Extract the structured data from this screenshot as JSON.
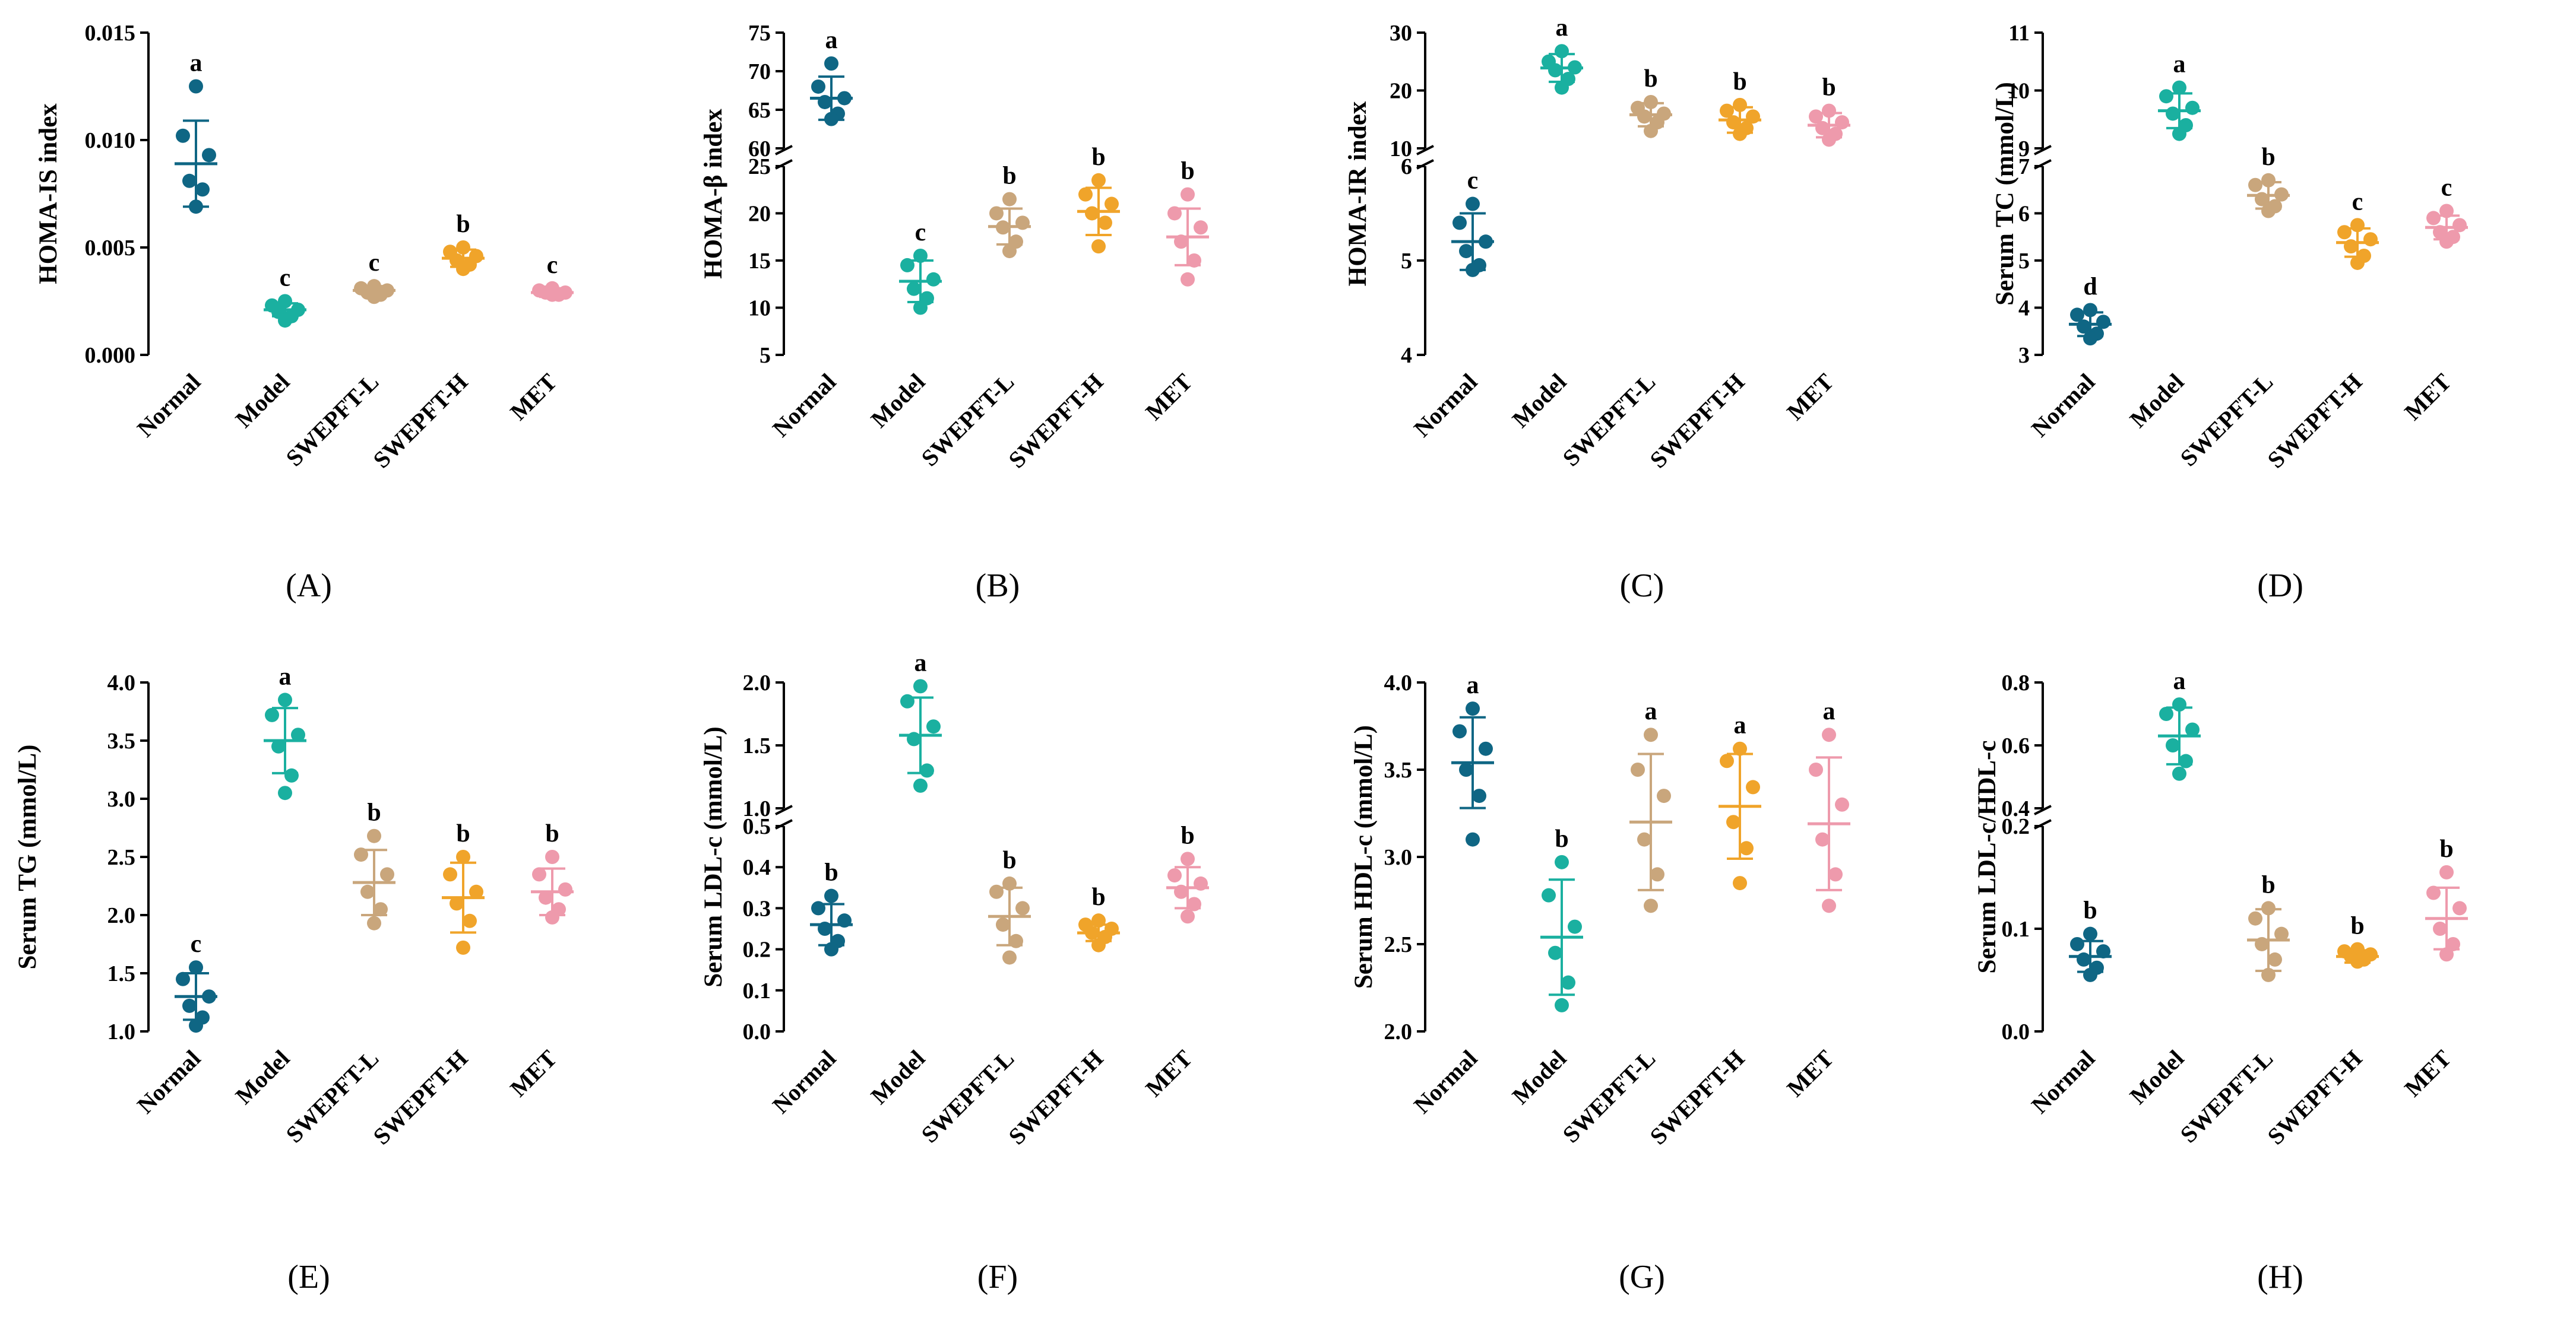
{
  "figure": {
    "palette": {
      "Normal": "#0f6684",
      "Model": "#1ab0a0",
      "SWEPFT-L": "#c9a67c",
      "SWEPFT-H": "#f0a42a",
      "MET": "#ee9aac"
    },
    "groups": [
      "Normal",
      "Model",
      "SWEPFT-L",
      "SWEPFT-H",
      "MET"
    ]
  },
  "chart_data": [
    {
      "type": "scatter",
      "panel_label": "(A)",
      "ylabel": "HOMA-IS index",
      "break": null,
      "ylim": [
        0,
        0.015
      ],
      "yticks": [
        "0.000",
        "0.005",
        "0.010",
        "0.015"
      ],
      "ytick_values": [
        0,
        0.005,
        0.01,
        0.015
      ],
      "categories": [
        "Normal",
        "Model",
        "SWEPFT-L",
        "SWEPFT-H",
        "MET"
      ],
      "series": [
        {
          "name": "Normal",
          "points": [
            0.0125,
            0.0102,
            0.0093,
            0.0081,
            0.0077,
            0.0069
          ],
          "mean": 0.0089,
          "sd": 0.002,
          "letter": "a"
        },
        {
          "name": "Model",
          "points": [
            0.0025,
            0.0023,
            0.0021,
            0.002,
            0.0018,
            0.0016
          ],
          "mean": 0.0021,
          "sd": 0.0003,
          "letter": "c"
        },
        {
          "name": "SWEPFT-L",
          "points": [
            0.0032,
            0.0031,
            0.003,
            0.0029,
            0.0028,
            0.0027
          ],
          "mean": 0.003,
          "sd": 0.0002,
          "letter": "c"
        },
        {
          "name": "SWEPFT-H",
          "points": [
            0.005,
            0.0048,
            0.0046,
            0.0044,
            0.0042,
            0.004
          ],
          "mean": 0.0045,
          "sd": 0.0004,
          "letter": "b"
        },
        {
          "name": "MET",
          "points": [
            0.0031,
            0.003,
            0.0029,
            0.0029,
            0.0028,
            0.0028
          ],
          "mean": 0.0029,
          "sd": 0.0002,
          "letter": "c"
        }
      ]
    },
    {
      "type": "scatter",
      "panel_label": "(B)",
      "ylabel": "HOMA-β index",
      "break": {
        "lower": [
          5,
          25
        ],
        "upper": [
          60,
          75
        ]
      },
      "yticks": [
        "5",
        "10",
        "15",
        "20",
        "25",
        "60",
        "65",
        "70",
        "75"
      ],
      "ytick_values": [
        5,
        10,
        15,
        20,
        25,
        60,
        65,
        70,
        75
      ],
      "categories": [
        "Normal",
        "Model",
        "SWEPFT-L",
        "SWEPFT-H",
        "MET"
      ],
      "series": [
        {
          "name": "Normal",
          "points": [
            71.0,
            68.0,
            66.5,
            66.0,
            64.5,
            63.8
          ],
          "mean": 66.5,
          "sd": 2.8,
          "letter": "a"
        },
        {
          "name": "Model",
          "points": [
            15.5,
            14.5,
            13.0,
            12.0,
            11.0,
            10.0
          ],
          "mean": 12.8,
          "sd": 2.2,
          "letter": "c"
        },
        {
          "name": "SWEPFT-L",
          "points": [
            21.5,
            20.0,
            19.0,
            18.5,
            17.0,
            16.0
          ],
          "mean": 18.6,
          "sd": 1.9,
          "letter": "b"
        },
        {
          "name": "SWEPFT-H",
          "points": [
            23.5,
            22.0,
            21.0,
            20.0,
            19.0,
            16.5
          ],
          "mean": 20.2,
          "sd": 2.5,
          "letter": "b"
        },
        {
          "name": "MET",
          "points": [
            22.0,
            20.0,
            18.5,
            17.0,
            15.0,
            13.0
          ],
          "mean": 17.5,
          "sd": 3.0,
          "letter": "b"
        }
      ]
    },
    {
      "type": "scatter",
      "panel_label": "(C)",
      "ylabel": "HOMA-IR index",
      "break": {
        "lower": [
          4,
          6
        ],
        "upper": [
          10,
          30
        ]
      },
      "yticks": [
        "4",
        "5",
        "6",
        "10",
        "20",
        "30"
      ],
      "ytick_values": [
        4,
        5,
        6,
        10,
        20,
        30
      ],
      "categories": [
        "Normal",
        "Model",
        "SWEPFT-L",
        "SWEPFT-H",
        "MET"
      ],
      "series": [
        {
          "name": "Normal",
          "points": [
            5.6,
            5.4,
            5.2,
            5.1,
            4.95,
            4.9
          ],
          "mean": 5.2,
          "sd": 0.3,
          "letter": "c"
        },
        {
          "name": "Model",
          "points": [
            26.8,
            25.0,
            24.0,
            23.5,
            22.0,
            20.5
          ],
          "mean": 23.9,
          "sd": 2.4,
          "letter": "a"
        },
        {
          "name": "SWEPFT-L",
          "points": [
            18.0,
            17.0,
            16.0,
            15.5,
            14.5,
            13.0
          ],
          "mean": 15.8,
          "sd": 2.0,
          "letter": "b"
        },
        {
          "name": "SWEPFT-H",
          "points": [
            17.5,
            16.5,
            15.5,
            14.5,
            13.5,
            12.5
          ],
          "mean": 14.9,
          "sd": 2.2,
          "letter": "b"
        },
        {
          "name": "MET",
          "points": [
            16.5,
            15.5,
            14.5,
            13.5,
            12.5,
            11.5
          ],
          "mean": 14.0,
          "sd": 2.1,
          "letter": "b"
        }
      ]
    },
    {
      "type": "scatter",
      "panel_label": "(D)",
      "ylabel": "Serum TC (mmol/L)",
      "break": {
        "lower": [
          3,
          7
        ],
        "upper": [
          9,
          11
        ]
      },
      "yticks": [
        "3",
        "4",
        "5",
        "6",
        "7",
        "9",
        "10",
        "11"
      ],
      "ytick_values": [
        3,
        4,
        5,
        6,
        7,
        9,
        10,
        11
      ],
      "categories": [
        "Normal",
        "Model",
        "SWEPFT-L",
        "SWEPFT-H",
        "MET"
      ],
      "series": [
        {
          "name": "Normal",
          "points": [
            3.95,
            3.85,
            3.7,
            3.6,
            3.45,
            3.35
          ],
          "mean": 3.65,
          "sd": 0.25,
          "letter": "d"
        },
        {
          "name": "Model",
          "points": [
            10.05,
            9.9,
            9.7,
            9.6,
            9.4,
            9.25
          ],
          "mean": 9.65,
          "sd": 0.3,
          "letter": "a"
        },
        {
          "name": "SWEPFT-L",
          "points": [
            6.7,
            6.6,
            6.4,
            6.3,
            6.15,
            6.05
          ],
          "mean": 6.38,
          "sd": 0.28,
          "letter": "b"
        },
        {
          "name": "SWEPFT-H",
          "points": [
            5.75,
            5.6,
            5.45,
            5.3,
            5.1,
            4.95
          ],
          "mean": 5.38,
          "sd": 0.3,
          "letter": "c"
        },
        {
          "name": "MET",
          "points": [
            6.05,
            5.9,
            5.75,
            5.6,
            5.5,
            5.4
          ],
          "mean": 5.7,
          "sd": 0.25,
          "letter": "c"
        }
      ]
    },
    {
      "type": "scatter",
      "panel_label": "(E)",
      "ylabel": "Serum TG (mmol/L)",
      "break": null,
      "ylim": [
        1.0,
        4.0
      ],
      "yticks": [
        "1.0",
        "1.5",
        "2.0",
        "2.5",
        "3.0",
        "3.5",
        "4.0"
      ],
      "ytick_values": [
        1.0,
        1.5,
        2.0,
        2.5,
        3.0,
        3.5,
        4.0
      ],
      "categories": [
        "Normal",
        "Model",
        "SWEPFT-L",
        "SWEPFT-H",
        "MET"
      ],
      "series": [
        {
          "name": "Normal",
          "points": [
            1.55,
            1.45,
            1.3,
            1.22,
            1.12,
            1.05
          ],
          "mean": 1.3,
          "sd": 0.2,
          "letter": "c"
        },
        {
          "name": "Model",
          "points": [
            3.85,
            3.72,
            3.55,
            3.45,
            3.2,
            3.05
          ],
          "mean": 3.5,
          "sd": 0.28,
          "letter": "a"
        },
        {
          "name": "SWEPFT-L",
          "points": [
            2.68,
            2.52,
            2.35,
            2.2,
            2.05,
            1.93
          ],
          "mean": 2.28,
          "sd": 0.28,
          "letter": "b"
        },
        {
          "name": "SWEPFT-H",
          "points": [
            2.5,
            2.35,
            2.2,
            2.1,
            1.95,
            1.72
          ],
          "mean": 2.15,
          "sd": 0.3,
          "letter": "b"
        },
        {
          "name": "MET",
          "points": [
            2.5,
            2.35,
            2.22,
            2.15,
            2.05,
            1.98
          ],
          "mean": 2.2,
          "sd": 0.2,
          "letter": "b"
        }
      ]
    },
    {
      "type": "scatter",
      "panel_label": "(F)",
      "ylabel": "Serum LDL-c (mmol/L)",
      "break": {
        "lower": [
          0.0,
          0.5
        ],
        "upper": [
          1.0,
          2.0
        ]
      },
      "yticks": [
        "0.0",
        "0.1",
        "0.2",
        "0.3",
        "0.4",
        "0.5",
        "1.0",
        "1.5",
        "2.0"
      ],
      "ytick_values": [
        0.0,
        0.1,
        0.2,
        0.3,
        0.4,
        0.5,
        1.0,
        1.5,
        2.0
      ],
      "categories": [
        "Normal",
        "Model",
        "SWEPFT-L",
        "SWEPFT-H",
        "MET"
      ],
      "series": [
        {
          "name": "Normal",
          "points": [
            0.33,
            0.3,
            0.27,
            0.25,
            0.22,
            0.2
          ],
          "mean": 0.26,
          "sd": 0.05,
          "letter": "b"
        },
        {
          "name": "Model",
          "points": [
            1.97,
            1.85,
            1.65,
            1.55,
            1.3,
            1.18
          ],
          "mean": 1.58,
          "sd": 0.3,
          "letter": "a"
        },
        {
          "name": "SWEPFT-L",
          "points": [
            0.36,
            0.34,
            0.3,
            0.26,
            0.22,
            0.18
          ],
          "mean": 0.28,
          "sd": 0.07,
          "letter": "b"
        },
        {
          "name": "SWEPFT-H",
          "points": [
            0.27,
            0.26,
            0.25,
            0.24,
            0.23,
            0.21
          ],
          "mean": 0.24,
          "sd": 0.02,
          "letter": "b"
        },
        {
          "name": "MET",
          "points": [
            0.42,
            0.38,
            0.36,
            0.34,
            0.31,
            0.28
          ],
          "mean": 0.35,
          "sd": 0.05,
          "letter": "b"
        }
      ]
    },
    {
      "type": "scatter",
      "panel_label": "(G)",
      "ylabel": "Serum HDL-c (mmol/L)",
      "break": null,
      "ylim": [
        2.0,
        4.0
      ],
      "yticks": [
        "2.0",
        "2.5",
        "3.0",
        "3.5",
        "4.0"
      ],
      "ytick_values": [
        2.0,
        2.5,
        3.0,
        3.5,
        4.0
      ],
      "categories": [
        "Normal",
        "Model",
        "SWEPFT-L",
        "SWEPFT-H",
        "MET"
      ],
      "series": [
        {
          "name": "Normal",
          "points": [
            3.85,
            3.72,
            3.62,
            3.5,
            3.35,
            3.1
          ],
          "mean": 3.54,
          "sd": 0.26,
          "letter": "a"
        },
        {
          "name": "Model",
          "points": [
            2.97,
            2.78,
            2.6,
            2.45,
            2.28,
            2.15
          ],
          "mean": 2.54,
          "sd": 0.33,
          "letter": "b"
        },
        {
          "name": "SWEPFT-L",
          "points": [
            3.7,
            3.5,
            3.35,
            3.1,
            2.9,
            2.72
          ],
          "mean": 3.2,
          "sd": 0.39,
          "letter": "a"
        },
        {
          "name": "SWEPFT-H",
          "points": [
            3.62,
            3.55,
            3.4,
            3.2,
            3.05,
            2.85
          ],
          "mean": 3.29,
          "sd": 0.3,
          "letter": "a"
        },
        {
          "name": "MET",
          "points": [
            3.7,
            3.5,
            3.3,
            3.1,
            2.9,
            2.72
          ],
          "mean": 3.19,
          "sd": 0.38,
          "letter": "a"
        }
      ]
    },
    {
      "type": "scatter",
      "panel_label": "(H)",
      "ylabel": "Serum LDL-c/HDL-c",
      "break": {
        "lower": [
          0.0,
          0.2
        ],
        "upper": [
          0.4,
          0.8
        ]
      },
      "yticks": [
        "0.0",
        "0.1",
        "0.2",
        "0.4",
        "0.6",
        "0.8"
      ],
      "ytick_values": [
        0.0,
        0.1,
        0.2,
        0.4,
        0.6,
        0.8
      ],
      "categories": [
        "Normal",
        "Model",
        "SWEPFT-L",
        "SWEPFT-H",
        "MET"
      ],
      "series": [
        {
          "name": "Normal",
          "points": [
            0.095,
            0.085,
            0.078,
            0.07,
            0.062,
            0.055
          ],
          "mean": 0.073,
          "sd": 0.015,
          "letter": "b"
        },
        {
          "name": "Model",
          "points": [
            0.73,
            0.7,
            0.65,
            0.6,
            0.55,
            0.51
          ],
          "mean": 0.63,
          "sd": 0.09,
          "letter": "a"
        },
        {
          "name": "SWEPFT-L",
          "points": [
            0.12,
            0.11,
            0.095,
            0.085,
            0.07,
            0.055
          ],
          "mean": 0.089,
          "sd": 0.03,
          "letter": "b"
        },
        {
          "name": "SWEPFT-H",
          "points": [
            0.08,
            0.078,
            0.075,
            0.073,
            0.07,
            0.068
          ],
          "mean": 0.073,
          "sd": 0.006,
          "letter": "b"
        },
        {
          "name": "MET",
          "points": [
            0.155,
            0.135,
            0.12,
            0.1,
            0.085,
            0.075
          ],
          "mean": 0.11,
          "sd": 0.03,
          "letter": "b"
        }
      ]
    }
  ]
}
